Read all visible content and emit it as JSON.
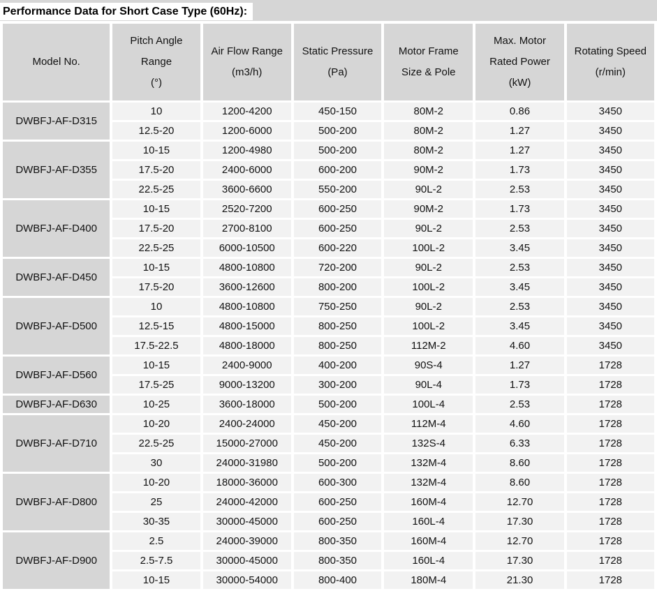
{
  "title": "Performance Data for Short Case Type (60Hz):",
  "colors": {
    "header_bg": "#d6d6d6",
    "row_bg": "#f2f2f2",
    "gap": "#ffffff",
    "text": "#111111"
  },
  "table": {
    "columns": [
      "Model No.",
      "Pitch Angle\nRange\n(°)",
      "Air Flow Range\n(m3/h)",
      "Static Pressure\n(Pa)",
      "Motor Frame\nSize & Pole",
      "Max. Motor\nRated Power\n(kW)",
      "Rotating Speed\n(r/min)"
    ],
    "groups": [
      {
        "model": "DWBFJ-AF-D315",
        "rows": [
          [
            "10",
            "1200-4200",
            "450-150",
            "80M-2",
            "0.86",
            "3450"
          ],
          [
            "12.5-20",
            "1200-6000",
            "500-200",
            "80M-2",
            "1.27",
            "3450"
          ]
        ]
      },
      {
        "model": "DWBFJ-AF-D355",
        "rows": [
          [
            "10-15",
            "1200-4980",
            "500-200",
            "80M-2",
            "1.27",
            "3450"
          ],
          [
            "17.5-20",
            "2400-6000",
            "600-200",
            "90M-2",
            "1.73",
            "3450"
          ],
          [
            "22.5-25",
            "3600-6600",
            "550-200",
            "90L-2",
            "2.53",
            "3450"
          ]
        ]
      },
      {
        "model": "DWBFJ-AF-D400",
        "rows": [
          [
            "10-15",
            "2520-7200",
            "600-250",
            "90M-2",
            "1.73",
            "3450"
          ],
          [
            "17.5-20",
            "2700-8100",
            "600-250",
            "90L-2",
            "2.53",
            "3450"
          ],
          [
            "22.5-25",
            "6000-10500",
            "600-220",
            "100L-2",
            "3.45",
            "3450"
          ]
        ]
      },
      {
        "model": "DWBFJ-AF-D450",
        "rows": [
          [
            "10-15",
            "4800-10800",
            "720-200",
            "90L-2",
            "2.53",
            "3450"
          ],
          [
            "17.5-20",
            "3600-12600",
            "800-200",
            "100L-2",
            "3.45",
            "3450"
          ]
        ]
      },
      {
        "model": "DWBFJ-AF-D500",
        "rows": [
          [
            "10",
            "4800-10800",
            "750-250",
            "90L-2",
            "2.53",
            "3450"
          ],
          [
            "12.5-15",
            "4800-15000",
            "800-250",
            "100L-2",
            "3.45",
            "3450"
          ],
          [
            "17.5-22.5",
            "4800-18000",
            "800-250",
            "112M-2",
            "4.60",
            "3450"
          ]
        ]
      },
      {
        "model": "DWBFJ-AF-D560",
        "rows": [
          [
            "10-15",
            "2400-9000",
            "400-200",
            "90S-4",
            "1.27",
            "1728"
          ],
          [
            "17.5-25",
            "9000-13200",
            "300-200",
            "90L-4",
            "1.73",
            "1728"
          ]
        ]
      },
      {
        "model": "DWBFJ-AF-D630",
        "rows": [
          [
            "10-25",
            "3600-18000",
            "500-200",
            "100L-4",
            "2.53",
            "1728"
          ]
        ]
      },
      {
        "model": "DWBFJ-AF-D710",
        "rows": [
          [
            "10-20",
            "2400-24000",
            "450-200",
            "112M-4",
            "4.60",
            "1728"
          ],
          [
            "22.5-25",
            "15000-27000",
            "450-200",
            "132S-4",
            "6.33",
            "1728"
          ],
          [
            "30",
            "24000-31980",
            "500-200",
            "132M-4",
            "8.60",
            "1728"
          ]
        ]
      },
      {
        "model": "DWBFJ-AF-D800",
        "rows": [
          [
            "10-20",
            "18000-36000",
            "600-300",
            "132M-4",
            "8.60",
            "1728"
          ],
          [
            "25",
            "24000-42000",
            "600-250",
            "160M-4",
            "12.70",
            "1728"
          ],
          [
            "30-35",
            "30000-45000",
            "600-250",
            "160L-4",
            "17.30",
            "1728"
          ]
        ]
      },
      {
        "model": "DWBFJ-AF-D900",
        "rows": [
          [
            "2.5",
            "24000-39000",
            "800-350",
            "160M-4",
            "12.70",
            "1728"
          ],
          [
            "2.5-7.5",
            "30000-45000",
            "800-350",
            "160L-4",
            "17.30",
            "1728"
          ],
          [
            "10-15",
            "30000-54000",
            "800-400",
            "180M-4",
            "21.30",
            "1728"
          ]
        ]
      }
    ]
  }
}
